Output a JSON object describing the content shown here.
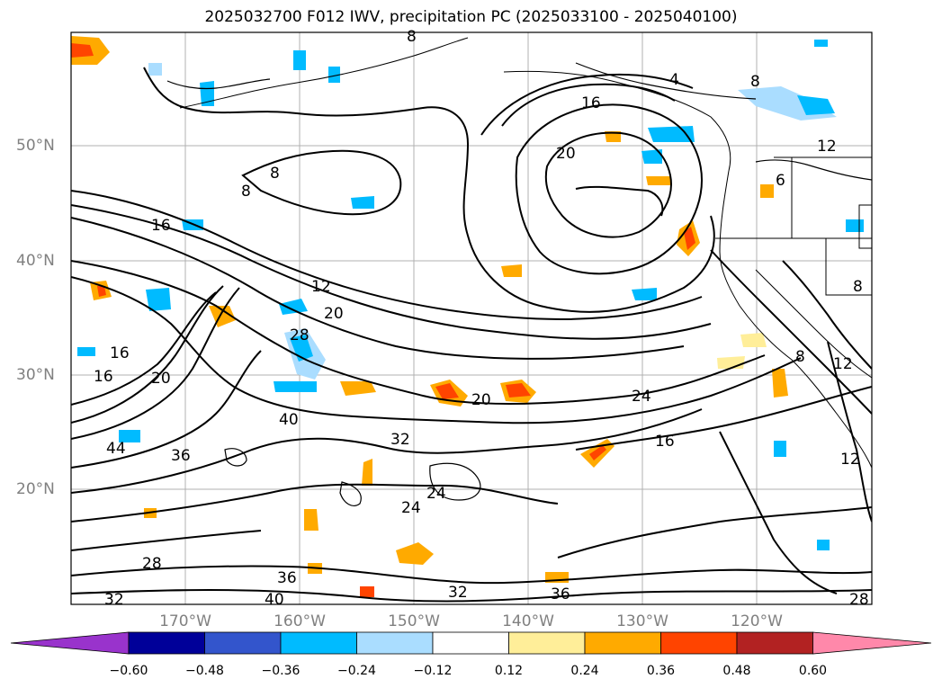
{
  "title": "2025032700 F012 IWV, precipitation PC (2025033100 - 2025040100)",
  "lat_labels": [
    "50°N",
    "40°N",
    "30°N",
    "20°N"
  ],
  "lon_labels": [
    "170°W",
    "160°W",
    "150°W",
    "140°W",
    "130°W",
    "120°W"
  ],
  "contour_labels": [
    "8",
    "8",
    "8",
    "4",
    "8",
    "16",
    "20",
    "12",
    "16",
    "12",
    "20",
    "16",
    "16",
    "20",
    "28",
    "40",
    "44",
    "36",
    "32",
    "24",
    "24",
    "20",
    "24",
    "16",
    "12",
    "8",
    "28",
    "36",
    "40",
    "32",
    "36",
    "32",
    "28",
    "12",
    "8",
    "6"
  ],
  "colorbar": {
    "colors": [
      "#9933cc",
      "#000099",
      "#3355cc",
      "#00bbff",
      "#aaddff",
      "#ffffff",
      "#ffee99",
      "#ffaa00",
      "#ff4400",
      "#b22222",
      "#ff88aa"
    ],
    "labels": [
      "−0.60",
      "−0.48",
      "−0.36",
      "−0.24",
      "−0.12",
      "0.12",
      "0.24",
      "0.36",
      "0.48",
      "0.60"
    ]
  },
  "colors": {
    "grid": "#b0b0b0",
    "contour": "#000000",
    "axis_label": "#808080"
  }
}
